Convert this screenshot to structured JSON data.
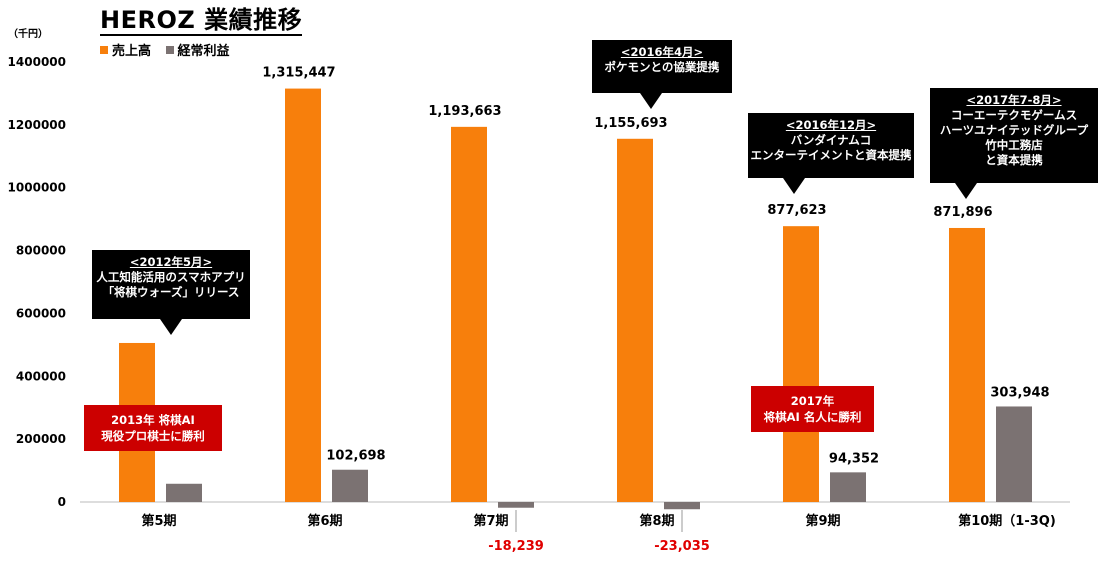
{
  "title": "HEROZ 業績推移",
  "unit_label": "（千円）",
  "colors": {
    "sales": "#f77f0c",
    "profit": "#7b7272",
    "negative": "#e00000",
    "callout": "#000000",
    "highlight": "#cc0000"
  },
  "chart_data": {
    "type": "bar",
    "title": "HEROZ 業績推移",
    "ylabel": "（千円）",
    "xlabel": "",
    "ylim": [
      -60000,
      1400000
    ],
    "yticks": [
      "0",
      "200000",
      "400000",
      "600000",
      "800000",
      "1000000",
      "1200000",
      "1400000"
    ],
    "ytick_values": [
      0,
      200000,
      400000,
      600000,
      800000,
      1000000,
      1200000,
      1400000
    ],
    "categories": [
      "第5期",
      "第6期",
      "第7期",
      "第8期",
      "第9期",
      "第10期（1-3Q)"
    ],
    "legend_position": "top-left",
    "grid": false,
    "series": [
      {
        "name": "売上高",
        "values": [
          506000,
          1315447,
          1193663,
          1155693,
          877623,
          871896
        ],
        "labels": [
          "",
          "1,315,447",
          "1,193,663",
          "1,155,693",
          "877,623",
          "871,896"
        ]
      },
      {
        "name": "経常利益",
        "values": [
          58000,
          102698,
          -18239,
          -23035,
          94352,
          303948
        ],
        "labels": [
          "",
          "102,698",
          "-18,239",
          "-23,035",
          "94,352",
          "303,948"
        ]
      }
    ]
  },
  "callouts": [
    {
      "header": "<2012年5月>",
      "lines": [
        "人工知能活用のスマホアプリ",
        "「将棋ウォーズ」リリース"
      ]
    },
    {
      "header": "<2016年4月>",
      "lines": [
        "ポケモンとの協業提携"
      ]
    },
    {
      "header": "<2016年12月>",
      "lines": [
        "バンダイナムコ",
        "エンターテイメントと資本提携"
      ]
    },
    {
      "header": "<2017年7-8月>",
      "lines": [
        "コーエーテクモゲームス",
        "ハーツユナイテッドグループ",
        "竹中工務店",
        "と資本提携"
      ]
    }
  ],
  "highlights": [
    {
      "lines": [
        "2013年 将棋AI",
        "現役プロ棋士に勝利"
      ]
    },
    {
      "lines": [
        "2017年",
        "将棋AI 名人に勝利"
      ]
    }
  ]
}
